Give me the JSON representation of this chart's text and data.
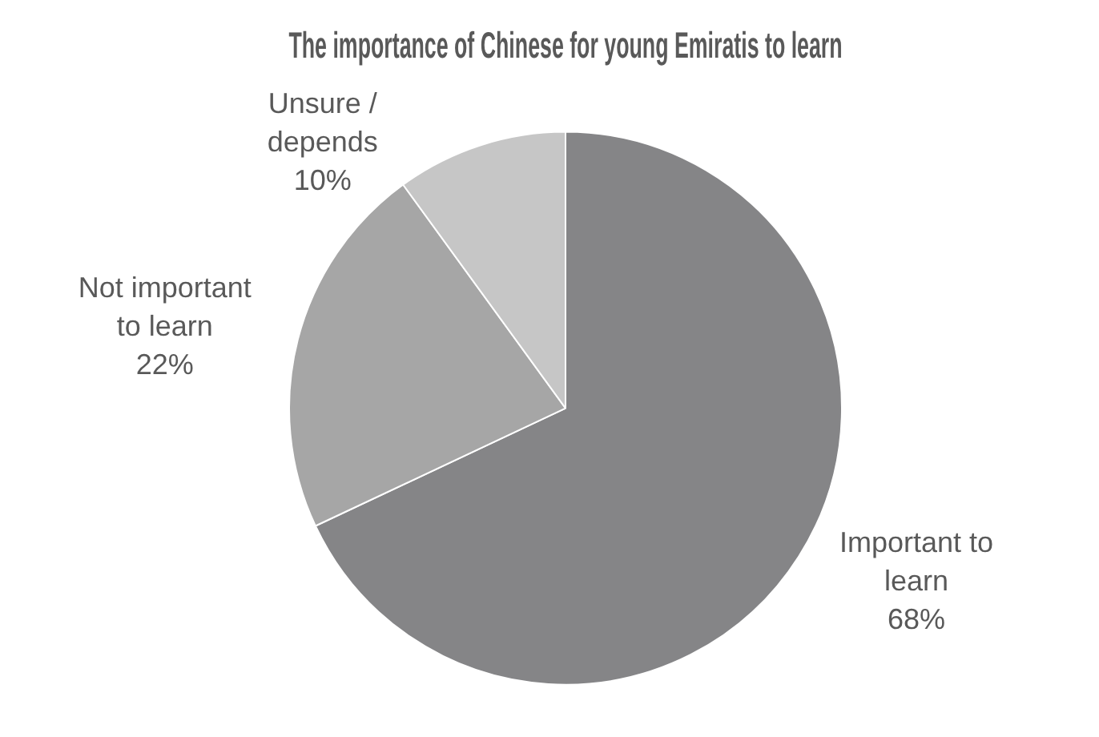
{
  "chart_data": {
    "type": "pie",
    "title": "The importance of Chinese for young Emiratis to learn",
    "categories": [
      "Important to learn",
      "Not important to learn",
      "Unsure / depends"
    ],
    "values": [
      68,
      22,
      10
    ],
    "value_labels": [
      "68%",
      "22%",
      "10%"
    ],
    "colors": [
      "#858587",
      "#a6a6a6",
      "#c6c6c6"
    ],
    "legend": false
  }
}
